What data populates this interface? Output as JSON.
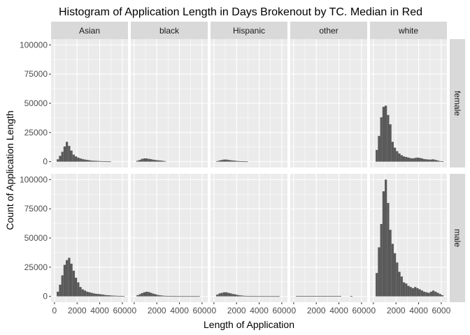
{
  "chart_data": {
    "type": "bar",
    "subtype": "faceted-histogram",
    "title": "Histogram of Application Length in Days Brokenout by TC. Median in Red",
    "xlabel": "Length of Application",
    "ylabel": "Count of Application Length",
    "x_ticks": [
      0,
      2000,
      4000,
      6000
    ],
    "x_tick_labels": [
      "0",
      "2000",
      "4000",
      "6000"
    ],
    "y_ticks": [
      0,
      25000,
      50000,
      75000,
      100000
    ],
    "y_tick_labels": [
      "0",
      "25000",
      "50000",
      "75000",
      "100000"
    ],
    "xlim": [
      -300,
      6500
    ],
    "ylim": [
      -5000,
      105000
    ],
    "bin_width": 200,
    "bin_centers": [
      300,
      500,
      700,
      900,
      1100,
      1300,
      1500,
      1700,
      1900,
      2100,
      2300,
      2500,
      2700,
      2900,
      3100,
      3300,
      3500,
      3700,
      3900,
      4100,
      4300,
      4500,
      4700,
      4900,
      5100,
      5300,
      5500,
      5700,
      5900,
      6100,
      6300
    ],
    "columns": [
      "Asian",
      "black",
      "Hispanic",
      "other",
      "white"
    ],
    "rows": [
      "female",
      "male"
    ],
    "grid": true,
    "bar_color": "#595959",
    "panel_background": "#ebebeb",
    "strip_background": "#d9d9d9",
    "panels": [
      {
        "row": "female",
        "col": "Asian",
        "values": [
          2000,
          5000,
          8500,
          13000,
          17000,
          13500,
          9500,
          6000,
          4500,
          3500,
          2800,
          2200,
          1800,
          1500,
          1200,
          900,
          800,
          700,
          600,
          500,
          400,
          300,
          200,
          200,
          0,
          0,
          0,
          0,
          0,
          0,
          0
        ]
      },
      {
        "row": "female",
        "col": "black",
        "values": [
          800,
          1500,
          2400,
          2800,
          2800,
          2400,
          2100,
          1700,
          1400,
          1200,
          1000,
          800,
          500,
          0,
          0,
          0,
          0,
          0,
          0,
          0,
          0,
          0,
          0,
          0,
          0,
          0,
          0,
          0,
          0,
          0,
          0
        ]
      },
      {
        "row": "female",
        "col": "Hispanic",
        "values": [
          500,
          1000,
          1500,
          1800,
          1800,
          1500,
          1200,
          1000,
          800,
          600,
          400,
          300,
          200,
          200,
          0,
          0,
          0,
          0,
          0,
          0,
          0,
          0,
          0,
          0,
          0,
          0,
          0,
          0,
          0,
          0,
          0
        ]
      },
      {
        "row": "female",
        "col": "other",
        "values": [
          0,
          0,
          0,
          0,
          0,
          0,
          0,
          0,
          0,
          0,
          0,
          0,
          0,
          0,
          0,
          0,
          0,
          0,
          0,
          0,
          0,
          0,
          0,
          0,
          0,
          0,
          0,
          0,
          0,
          0,
          0
        ]
      },
      {
        "row": "female",
        "col": "white",
        "values": [
          10000,
          22000,
          38000,
          47000,
          48000,
          40000,
          32000,
          17000,
          12000,
          9000,
          7000,
          5500,
          4500,
          4000,
          3500,
          3000,
          2800,
          3200,
          3500,
          3200,
          2800,
          2200,
          2000,
          1800,
          1800,
          2000,
          1500,
          1000,
          500,
          300,
          0
        ]
      },
      {
        "row": "male",
        "col": "Asian",
        "values": [
          4000,
          10000,
          18000,
          27000,
          31000,
          33000,
          28000,
          22000,
          16000,
          12000,
          8000,
          6000,
          5000,
          4000,
          3500,
          3000,
          2500,
          2200,
          2000,
          1800,
          1500,
          1200,
          1000,
          900,
          700,
          600,
          500,
          400,
          300,
          200,
          0
        ]
      },
      {
        "row": "male",
        "col": "black",
        "values": [
          1000,
          1800,
          2800,
          3500,
          4000,
          3700,
          3000,
          2300,
          1800,
          1200,
          900,
          700,
          500,
          400,
          300,
          300,
          200,
          200,
          200,
          200,
          200,
          200,
          200,
          200,
          200,
          200,
          200,
          200,
          0,
          0,
          0
        ]
      },
      {
        "row": "male",
        "col": "Hispanic",
        "values": [
          1500,
          2500,
          3000,
          3500,
          3500,
          3000,
          2500,
          2000,
          1700,
          1200,
          900,
          700,
          500,
          400,
          300,
          200,
          200,
          200,
          200,
          200,
          200,
          200,
          200,
          200,
          200,
          200,
          200,
          200,
          0,
          0,
          0
        ]
      },
      {
        "row": "male",
        "col": "other",
        "values": [
          300,
          300,
          300,
          300,
          300,
          300,
          300,
          300,
          300,
          300,
          300,
          300,
          300,
          300,
          300,
          300,
          300,
          300,
          300,
          300,
          0,
          0,
          0,
          0,
          300,
          0,
          0,
          0,
          0,
          0,
          0
        ]
      },
      {
        "row": "male",
        "col": "white",
        "values": [
          20000,
          42000,
          62000,
          90000,
          100000,
          80000,
          57000,
          45000,
          37000,
          29000,
          21000,
          17000,
          12000,
          11000,
          9000,
          8000,
          7000,
          8000,
          7000,
          6000,
          5000,
          4000,
          3500,
          3000,
          4000,
          5000,
          4000,
          3000,
          2000,
          1000,
          0
        ]
      }
    ]
  }
}
